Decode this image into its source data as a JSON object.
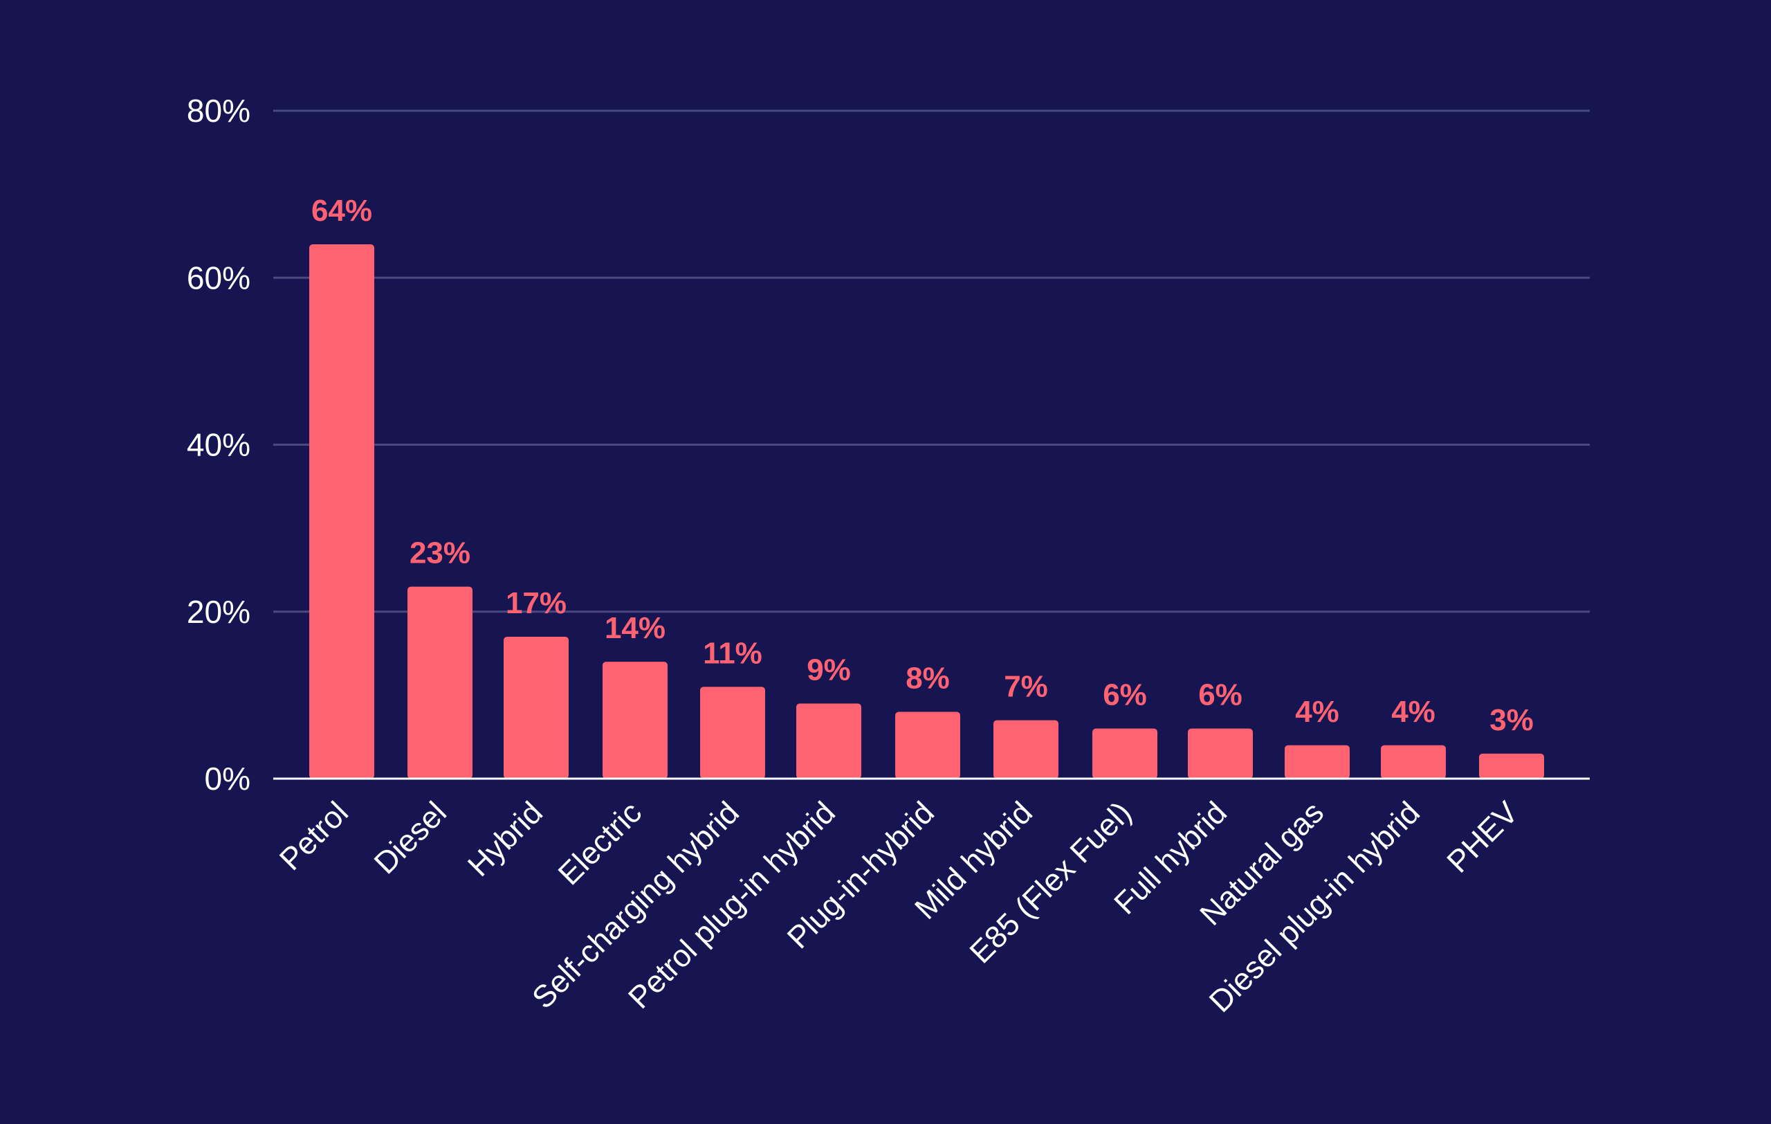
{
  "chart_data": {
    "type": "bar",
    "categories": [
      "Petrol",
      "Diesel",
      "Hybrid",
      "Electric",
      "Self-charging hybrid",
      "Petrol plug-in hybrid",
      "Plug-in-hybrid",
      "Mild hybrid",
      "E85 (Flex Fuel)",
      "Full hybrid",
      "Natural gas",
      "Diesel plug-in hybrid",
      "PHEV"
    ],
    "values": [
      64,
      23,
      17,
      14,
      11,
      9,
      8,
      7,
      6,
      6,
      4,
      4,
      3
    ],
    "value_labels": [
      "64%",
      "23%",
      "17%",
      "14%",
      "11%",
      "9%",
      "8%",
      "7%",
      "6%",
      "6%",
      "4%",
      "4%",
      "3%"
    ],
    "yticks": [
      0,
      20,
      40,
      60,
      80
    ],
    "ytick_labels": [
      "0%",
      "20%",
      "40%",
      "60%",
      "80%"
    ],
    "ylim": [
      0,
      80
    ],
    "title": "",
    "xlabel": "",
    "ylabel": "",
    "grid": true,
    "legend": "none",
    "colors": {
      "background": "#161552",
      "bar": "#ff6372",
      "value_label": "#ff6372",
      "gridline": "#4b4a80",
      "baseline": "#ffffff",
      "text": "#ffffff"
    }
  }
}
